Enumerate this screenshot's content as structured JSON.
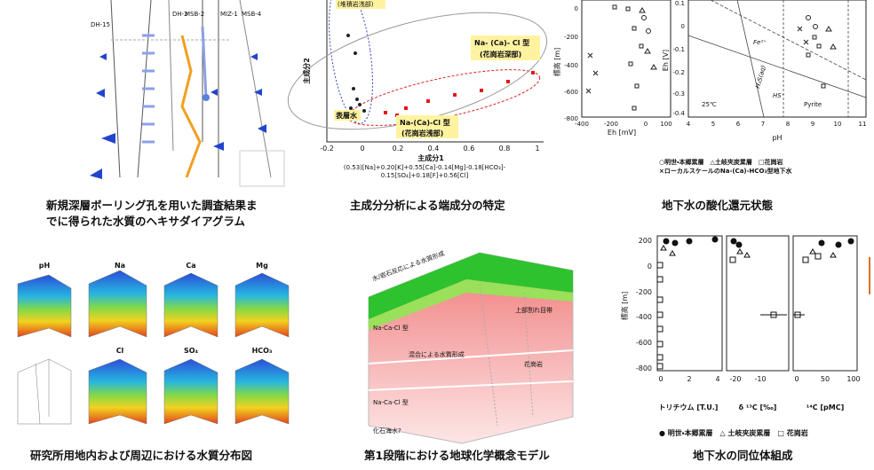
{
  "hexadiagram": {
    "caption": [
      "新規深層ボーリング孔を用いた調査結果ま",
      "でに得られた水質のヘキサダイアグラム"
    ],
    "well_labels": [
      "DH-15",
      "DH-2",
      "MSB-2",
      "MIZ-1",
      "MSB-4"
    ]
  },
  "pca": {
    "caption": "主成分分析による端成分の特定",
    "x_label": "主成分1",
    "y_label": "主成分2",
    "x_ticks": [
      -0.2,
      0,
      0.2,
      0.4,
      0.6,
      0.8,
      1
    ],
    "annotations": [
      "(堆積岩浅部)",
      "Na- (Ca)- Cl 型",
      "(花崗岩深部)",
      "表層水",
      "Na-(Ca)-Cl 型",
      "(花崗岩浅部)"
    ],
    "formula": [
      "(0.53)[Na]+0.20[K]+0.55[Ca]-0.14[Mg]-0.18[HCO₃]-",
      "0.15[SO₄]+0.18[F]+0.56[Cl]"
    ]
  },
  "redox": {
    "caption": "地下水の酸化還元状態",
    "eh_plot": {
      "x_label": "Eh [mV]",
      "y_label": "標高 [m]",
      "x_ticks": [
        -400,
        -200,
        0,
        100
      ],
      "y_ticks": [
        0,
        -200,
        -400,
        -600,
        -800
      ]
    },
    "ph_plot": {
      "x_label": "pH",
      "y_label": "Eh [V]",
      "x_ticks": [
        4,
        5,
        6,
        7,
        8,
        9,
        10,
        11
      ],
      "y_ticks": [
        0.1,
        0,
        -0.1,
        -0.2,
        -0.3,
        -0.4
      ],
      "annotations": [
        "Fe²⁺",
        "Pyrite",
        "25℃",
        "H₂S(aq)",
        "HS⁻"
      ]
    },
    "legend": [
      "○明世・本郷累層　△土岐夾炭累層　□花崗岩",
      "×ローカルスケールのNa-(Ca)-HCO₃型地下水"
    ]
  },
  "distribution": {
    "caption": "研究所用地内および周辺における水質分布図",
    "panel_titles": [
      "pH",
      "Na",
      "Ca",
      "Mg",
      "Cl",
      "SO₄",
      "HCO₃"
    ]
  },
  "concept_model": {
    "caption": "第1段階における地球化学概念モデル",
    "annotations": [
      "水/岩石反応による水質形成",
      "Na-Ca-Cl 型",
      "上部割れ目帯",
      "混合による水質形成",
      "花崗岩",
      "Na-Ca-Cl 型",
      "化石海水?"
    ]
  },
  "isotopes": {
    "caption": "地下水の同位体組成",
    "y_label": "標高 [m]",
    "y_ticks": [
      200,
      0,
      -200,
      -400,
      -600,
      -800
    ],
    "x_labels": [
      "トリチウム [T.U.]",
      "δ ¹³C [‰]",
      "¹⁴C [pMC]"
    ],
    "tritium_ticks": [
      0,
      2,
      4
    ],
    "d13c_ticks": [
      -20,
      -10
    ],
    "c14_ticks": [
      0,
      50,
      100
    ],
    "legend": "● 明世・本郷累層　△ 土岐夾炭累層　□ 花崗岩"
  }
}
